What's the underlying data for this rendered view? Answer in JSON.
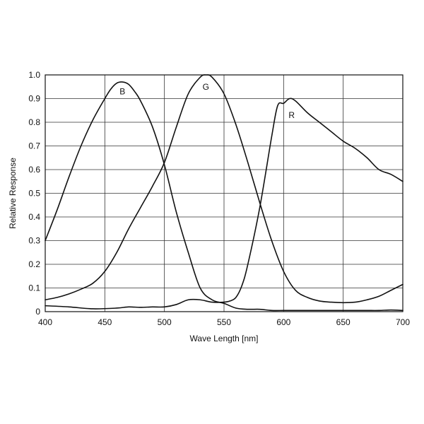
{
  "chart_data": {
    "type": "line",
    "xlabel": "Wave Length [nm]",
    "ylabel": "Relative Response",
    "xlim": [
      400,
      700
    ],
    "ylim": [
      0,
      1.0
    ],
    "grid": true,
    "x_ticks": [
      {
        "value": 400,
        "label": "400"
      },
      {
        "value": 450,
        "label": "450"
      },
      {
        "value": 500,
        "label": "500"
      },
      {
        "value": 550,
        "label": "550"
      },
      {
        "value": 600,
        "label": "600"
      },
      {
        "value": 650,
        "label": "650"
      },
      {
        "value": 700,
        "label": "700"
      }
    ],
    "y_ticks": [
      {
        "value": 0,
        "label": "0"
      },
      {
        "value": 0.1,
        "label": "0.1"
      },
      {
        "value": 0.2,
        "label": "0.2"
      },
      {
        "value": 0.3,
        "label": "0.3"
      },
      {
        "value": 0.4,
        "label": "0.4"
      },
      {
        "value": 0.5,
        "label": "0.5"
      },
      {
        "value": 0.6,
        "label": "0.6"
      },
      {
        "value": 0.7,
        "label": "0.7"
      },
      {
        "value": 0.8,
        "label": "0.8"
      },
      {
        "value": 0.9,
        "label": "0.9"
      },
      {
        "value": 1.0,
        "label": "1.0"
      }
    ],
    "series": [
      {
        "name": "B",
        "label_at": [
          463,
          0.93
        ],
        "x": [
          400,
          410,
          420,
          430,
          440,
          450,
          455,
          460,
          465,
          470,
          475,
          480,
          490,
          500,
          510,
          520,
          530,
          540,
          550,
          560,
          570,
          580,
          590,
          600,
          610,
          620,
          630,
          640,
          650,
          660,
          670,
          680,
          690,
          700
        ],
        "y": [
          0.3,
          0.43,
          0.57,
          0.7,
          0.81,
          0.9,
          0.94,
          0.965,
          0.97,
          0.96,
          0.93,
          0.89,
          0.78,
          0.62,
          0.42,
          0.25,
          0.1,
          0.05,
          0.035,
          0.015,
          0.01,
          0.01,
          0.005,
          0.005,
          0.005,
          0.005,
          0.005,
          0.005,
          0.005,
          0.005,
          0.005,
          0.005,
          0.007,
          0.005
        ]
      },
      {
        "name": "G",
        "label_at": [
          533,
          0.95
        ],
        "x": [
          400,
          410,
          420,
          430,
          440,
          450,
          460,
          470,
          480,
          490,
          500,
          510,
          520,
          530,
          535,
          540,
          550,
          560,
          570,
          580,
          590,
          600,
          610,
          620,
          630,
          640,
          650,
          660,
          670,
          680,
          690,
          700
        ],
        "y": [
          0.05,
          0.06,
          0.075,
          0.095,
          0.12,
          0.17,
          0.25,
          0.35,
          0.44,
          0.53,
          0.63,
          0.78,
          0.92,
          0.99,
          1.0,
          0.99,
          0.92,
          0.79,
          0.63,
          0.46,
          0.3,
          0.17,
          0.09,
          0.06,
          0.045,
          0.04,
          0.038,
          0.04,
          0.05,
          0.065,
          0.09,
          0.115
        ]
      },
      {
        "name": "R",
        "label_at": [
          605,
          0.83
        ],
        "x": [
          400,
          420,
          440,
          460,
          470,
          480,
          490,
          500,
          510,
          520,
          530,
          540,
          550,
          555,
          560,
          565,
          570,
          580,
          590,
          595,
          600,
          605,
          610,
          620,
          630,
          640,
          650,
          660,
          670,
          680,
          690,
          700
        ],
        "y": [
          0.025,
          0.02,
          0.012,
          0.015,
          0.02,
          0.018,
          0.02,
          0.02,
          0.03,
          0.05,
          0.05,
          0.04,
          0.04,
          0.045,
          0.06,
          0.11,
          0.2,
          0.44,
          0.74,
          0.87,
          0.88,
          0.9,
          0.89,
          0.84,
          0.8,
          0.76,
          0.72,
          0.69,
          0.65,
          0.6,
          0.58,
          0.55
        ]
      }
    ]
  }
}
